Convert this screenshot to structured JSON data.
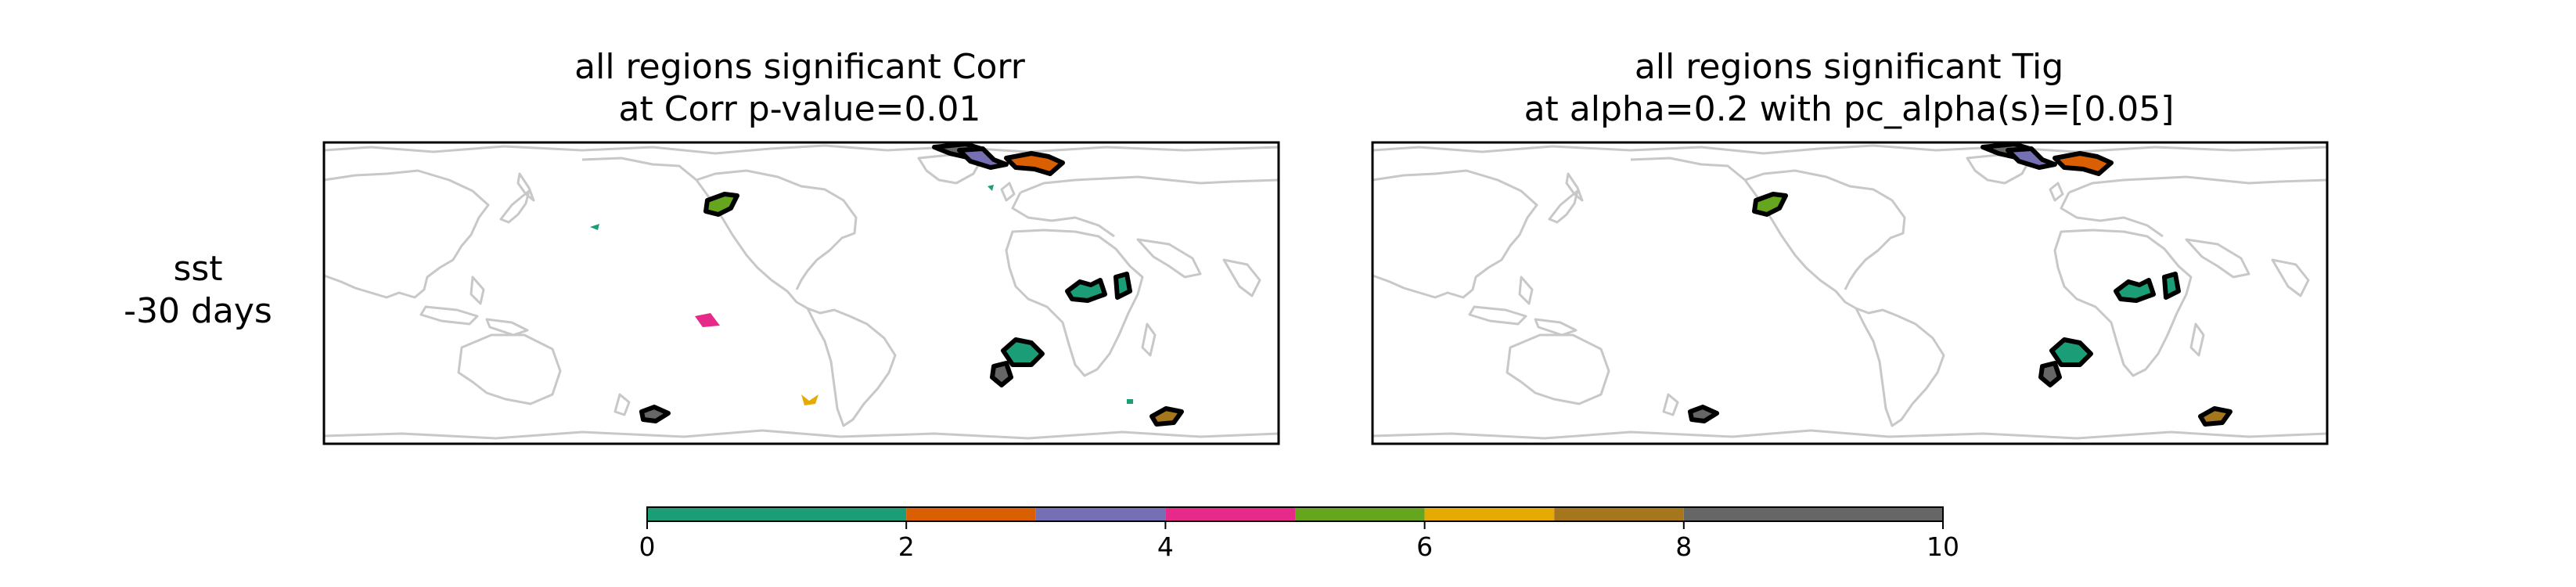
{
  "row_label": {
    "line1": "sst",
    "line2": "-30 days"
  },
  "panels": [
    {
      "title_line1": "all regions significant Corr",
      "title_line2": "at Corr p-value=0.01"
    },
    {
      "title_line1": "all regions significant Tig",
      "title_line2": "at alpha=0.2 with pc_alpha(s)=[0.05]"
    }
  ],
  "colorbar": {
    "ticks": [
      "0",
      "2",
      "4",
      "6",
      "8",
      "10"
    ],
    "range": [
      0,
      10
    ],
    "bins": [
      {
        "from": 0,
        "to": 2,
        "color": "#1b9e77"
      },
      {
        "from": 2,
        "to": 3,
        "color": "#d95f02"
      },
      {
        "from": 3,
        "to": 4,
        "color": "#7570b3"
      },
      {
        "from": 4,
        "to": 5,
        "color": "#e7298a"
      },
      {
        "from": 5,
        "to": 6,
        "color": "#66a61e"
      },
      {
        "from": 6,
        "to": 7,
        "color": "#e6ab02"
      },
      {
        "from": 7,
        "to": 8,
        "color": "#a6761d"
      },
      {
        "from": 8,
        "to": 10,
        "color": "#666666"
      }
    ]
  },
  "colors": {
    "coastline": "#c8c8c8",
    "outline": "#000000"
  }
}
